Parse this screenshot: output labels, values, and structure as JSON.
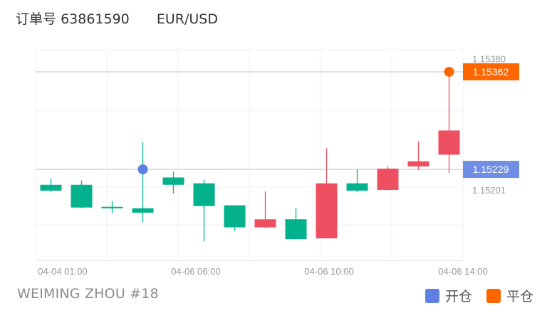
{
  "header": {
    "order_label": "订单号",
    "order_number": "63861590",
    "symbol": "EUR/USD"
  },
  "footer": {
    "account": "WEIMING ZHOU #18"
  },
  "legend": {
    "open_label": "开仓",
    "close_label": "平仓"
  },
  "colors": {
    "up": "#ef5061",
    "down": "#03b28c",
    "open_marker": "#5e80e0",
    "close_marker": "#ff6600",
    "open_tag": "#6f8ee4",
    "close_tag": "#ff6600"
  },
  "chart_data": {
    "type": "candlestick",
    "ylim": [
      1.15105,
      1.15392
    ],
    "y_ticks": [
      "1.15380",
      "1.15201"
    ],
    "x_ticks": [
      "04-04 01:00",
      "04-06 06:00",
      "04-06 10:00",
      "04-06 14:00"
    ],
    "candles": [
      {
        "open": 1.15208,
        "close": 1.152,
        "high": 1.15216,
        "low": 1.15198
      },
      {
        "open": 1.15208,
        "close": 1.15177,
        "high": 1.15214,
        "low": 1.15176
      },
      {
        "open": 1.15178,
        "close": 1.15176,
        "high": 1.15186,
        "low": 1.15169
      },
      {
        "open": 1.15176,
        "close": 1.1517,
        "high": 1.15266,
        "low": 1.15157
      },
      {
        "open": 1.15218,
        "close": 1.15208,
        "high": 1.15226,
        "low": 1.15196
      },
      {
        "open": 1.1521,
        "close": 1.15179,
        "high": 1.15215,
        "low": 1.15131
      },
      {
        "open": 1.1518,
        "close": 1.1515,
        "high": 1.1518,
        "low": 1.15145
      },
      {
        "open": 1.1515,
        "close": 1.15161,
        "high": 1.15199,
        "low": 1.15149
      },
      {
        "open": 1.15161,
        "close": 1.15134,
        "high": 1.15176,
        "low": 1.15132
      },
      {
        "open": 1.15135,
        "close": 1.1521,
        "high": 1.15258,
        "low": 1.15135
      },
      {
        "open": 1.1521,
        "close": 1.152,
        "high": 1.15229,
        "low": 1.15198
      },
      {
        "open": 1.15201,
        "close": 1.1523,
        "high": 1.15233,
        "low": 1.152
      },
      {
        "open": 1.15233,
        "close": 1.1524,
        "high": 1.15267,
        "low": 1.15228
      },
      {
        "open": 1.15249,
        "close": 1.15282,
        "high": 1.15363,
        "low": 1.15224
      }
    ],
    "open_price": "1.15229",
    "close_price": "1.15362",
    "open_marker_candle": 3,
    "close_marker_candle": 13
  }
}
